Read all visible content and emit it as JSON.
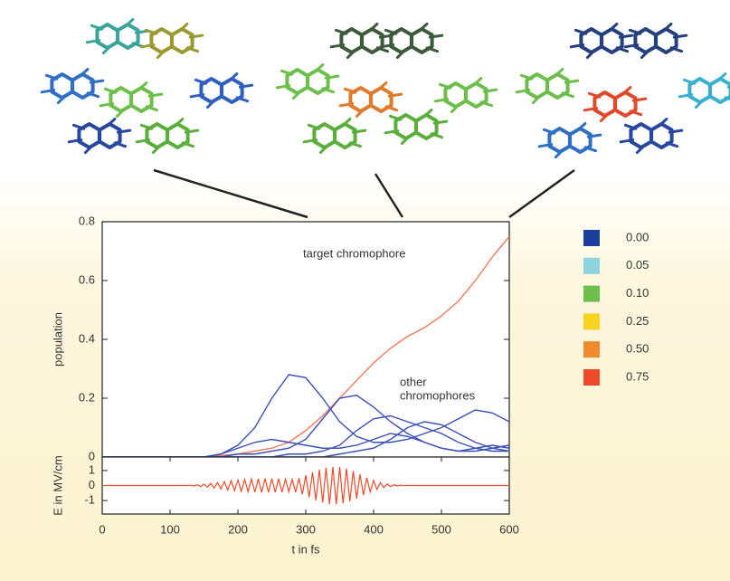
{
  "chart_data": [
    {
      "type": "line",
      "ylabel": "population",
      "x": [
        0,
        25,
        50,
        75,
        100,
        125,
        150,
        175,
        200,
        225,
        250,
        275,
        300,
        325,
        350,
        375,
        400,
        425,
        450,
        475,
        500,
        525,
        550,
        575,
        600
      ],
      "xlim": [
        0,
        600
      ],
      "ylim": [
        0,
        0.8
      ],
      "yticks": [
        0,
        0.2,
        0.4,
        0.6,
        0.8
      ],
      "annotations": [
        "other",
        "chromophores"
      ],
      "series": [
        {
          "name": "target chromophore",
          "color": "#f4785a",
          "values": [
            0,
            0,
            0,
            0,
            0,
            0,
            0,
            0.005,
            0.01,
            0.02,
            0.03,
            0.05,
            0.09,
            0.14,
            0.2,
            0.26,
            0.32,
            0.37,
            0.41,
            0.44,
            0.48,
            0.53,
            0.6,
            0.68,
            0.75
          ]
        },
        {
          "color": "#3a4fb8",
          "values": [
            0,
            0,
            0,
            0,
            0,
            0,
            0,
            0.01,
            0.04,
            0.1,
            0.2,
            0.28,
            0.27,
            0.2,
            0.12,
            0.07,
            0.05,
            0.05,
            0.06,
            0.08,
            0.1,
            0.13,
            0.16,
            0.15,
            0.12
          ]
        },
        {
          "color": "#3a4fb8",
          "values": [
            0,
            0,
            0,
            0,
            0,
            0,
            0,
            0,
            0.01,
            0.01,
            0.02,
            0.03,
            0.06,
            0.13,
            0.2,
            0.21,
            0.17,
            0.12,
            0.08,
            0.05,
            0.03,
            0.02,
            0.02,
            0.03,
            0.04
          ]
        },
        {
          "color": "#3a4fb8",
          "values": [
            0,
            0,
            0,
            0,
            0,
            0,
            0,
            0,
            0,
            0,
            0,
            0.01,
            0.01,
            0.02,
            0.04,
            0.09,
            0.13,
            0.14,
            0.12,
            0.1,
            0.08,
            0.05,
            0.03,
            0.02,
            0.02
          ]
        },
        {
          "color": "#3a4fb8",
          "values": [
            0,
            0,
            0,
            0,
            0,
            0,
            0,
            0,
            0,
            0,
            0,
            0,
            0,
            0,
            0.01,
            0.02,
            0.03,
            0.06,
            0.1,
            0.12,
            0.11,
            0.08,
            0.05,
            0.03,
            0.02
          ]
        },
        {
          "color": "#3a4fb8",
          "values": [
            0,
            0,
            0,
            0,
            0,
            0,
            0,
            0.01,
            0.03,
            0.05,
            0.06,
            0.05,
            0.04,
            0.03,
            0.03,
            0.04,
            0.06,
            0.08,
            0.07,
            0.05,
            0.03,
            0.02,
            0.03,
            0.04,
            0.03
          ]
        }
      ]
    },
    {
      "type": "line",
      "xlabel": "t in fs",
      "ylabel": "E in MV/cm",
      "x": [
        0,
        5,
        10,
        15,
        20,
        25,
        30,
        35,
        40,
        45,
        50,
        55,
        60,
        65,
        70,
        75,
        80,
        85,
        90,
        95,
        100,
        105,
        110,
        115,
        120,
        125,
        130,
        135,
        140,
        145,
        150,
        155,
        160,
        165,
        170,
        175,
        180,
        185,
        190,
        195,
        200,
        205,
        210,
        215,
        220,
        225,
        230,
        235,
        240,
        245,
        250,
        255,
        260,
        265,
        270,
        275,
        280,
        285,
        290,
        295,
        300,
        305,
        310,
        315,
        320,
        325,
        330,
        335,
        340,
        345,
        350,
        355,
        360,
        365,
        370,
        375,
        380,
        385,
        390,
        395,
        400,
        405,
        410,
        415,
        420,
        425,
        430,
        435,
        440,
        445,
        450,
        455,
        460,
        465,
        470,
        475,
        480,
        485,
        490,
        495,
        500,
        505,
        510,
        515,
        520,
        525,
        530,
        535,
        540,
        545,
        550,
        555,
        560,
        565,
        570,
        575,
        580,
        585,
        590,
        595,
        600
      ],
      "xlim": [
        0,
        600
      ],
      "xticks": [
        0,
        100,
        200,
        300,
        400,
        500,
        600
      ],
      "ylim": [
        -1.9,
        1.9
      ],
      "yticks": [
        -1,
        0,
        1
      ],
      "series": [
        {
          "color": "#ee4a2a",
          "values": [
            0,
            0,
            0,
            0,
            0,
            0,
            0,
            0,
            0,
            0,
            0,
            0,
            0,
            0,
            0,
            0,
            0,
            0,
            0,
            0,
            0,
            0,
            0,
            0,
            0,
            0,
            0.02,
            -0.03,
            0.05,
            -0.07,
            0.09,
            -0.11,
            0.14,
            -0.17,
            0.2,
            -0.23,
            0.26,
            -0.29,
            0.32,
            -0.34,
            0.37,
            -0.39,
            0.41,
            -0.42,
            0.44,
            -0.45,
            0.45,
            -0.46,
            0.46,
            -0.46,
            0.46,
            -0.45,
            0.45,
            -0.44,
            0.43,
            -0.42,
            0.42,
            -0.45,
            0.5,
            -0.58,
            0.68,
            -0.78,
            0.88,
            -0.98,
            1.06,
            -1.13,
            1.19,
            -1.23,
            1.25,
            -1.25,
            1.23,
            -1.19,
            1.13,
            -1.05,
            0.96,
            -0.86,
            0.75,
            -0.64,
            0.53,
            -0.43,
            0.34,
            -0.26,
            0.19,
            -0.14,
            0.1,
            -0.07,
            0.05,
            -0.03,
            0.02,
            -0.01,
            0,
            0,
            0,
            0,
            0,
            0,
            0,
            0,
            0,
            0,
            0,
            0,
            0,
            0,
            0,
            0,
            0,
            0,
            0,
            0,
            0,
            0,
            0,
            0,
            0,
            0,
            0,
            0,
            0,
            0,
            0
          ]
        }
      ]
    }
  ],
  "color_legend": [
    {
      "value": 0,
      "label": "0.00",
      "color": "#1c3f9e"
    },
    {
      "value": 0.05,
      "label": "0.05",
      "color": "#8fd3dc"
    },
    {
      "value": 0.1,
      "label": "0.10",
      "color": "#6cbf4a"
    },
    {
      "value": 0.25,
      "label": "0.25",
      "color": "#f6d320"
    },
    {
      "value": 0.5,
      "label": "0.50",
      "color": "#f08a2c"
    },
    {
      "value": 0.75,
      "label": "0.75",
      "color": "#ee4a2a"
    }
  ]
}
